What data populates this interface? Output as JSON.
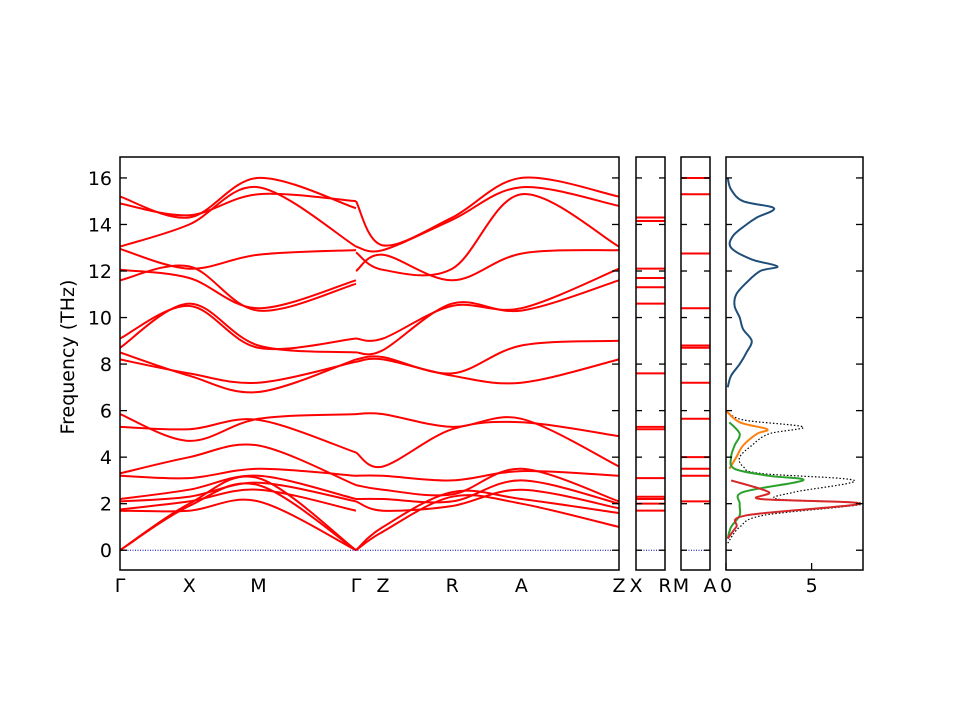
{
  "chart_data": {
    "type": "line",
    "ylabel": "Frequency (THz)",
    "ylim": [
      -0.85,
      16.9
    ],
    "yticks": [
      0,
      2,
      4,
      6,
      8,
      10,
      12,
      14,
      16
    ],
    "grid": false,
    "colors": {
      "bands": "#ff0000",
      "zero_line": "#0000aa",
      "total_dos": "#000000",
      "dos_series": [
        "#1f4e79",
        "#ff7f0e",
        "#2ca02c",
        "#d62728",
        "#a04040"
      ]
    },
    "band_panels": [
      {
        "id": "main",
        "segments": [
          {
            "start": "Γ",
            "end": "X"
          },
          {
            "start": "X",
            "end": "M"
          },
          {
            "start": "M",
            "end": "Γ"
          },
          {
            "start": "Γ|Z",
            "end": "Z",
            "note": ""
          }
        ],
        "tick_labels": [
          "Γ",
          "X",
          "M",
          "Γ",
          "Z",
          "R",
          "A",
          "Z"
        ],
        "tick_positions": [
          0.0,
          1.0,
          2.0,
          3.41,
          3.8,
          4.8,
          5.8,
          7.21
        ],
        "bands": [
          {
            "x": [
              0,
              1,
              2,
              3.41
            ],
            "y": [
              15.2,
              14.3,
              16.0,
              14.7
            ]
          },
          {
            "x": [
              0,
              1,
              2,
              3.41
            ],
            "y": [
              14.9,
              14.4,
              15.3,
              15.0
            ]
          },
          {
            "x": [
              0,
              1,
              2,
              3.41
            ],
            "y": [
              13.05,
              14.0,
              15.6,
              13.05
            ]
          },
          {
            "x": [
              0,
              1,
              2,
              3.41
            ],
            "y": [
              12.95,
              12.1,
              12.7,
              12.9
            ]
          },
          {
            "x": [
              0,
              1,
              2,
              3.41
            ],
            "y": [
              12.05,
              11.7,
              10.4,
              11.6
            ]
          },
          {
            "x": [
              0,
              1,
              2,
              3.41
            ],
            "y": [
              11.6,
              12.2,
              10.3,
              11.45
            ]
          },
          {
            "x": [
              0,
              1,
              2,
              3.41
            ],
            "y": [
              9.1,
              10.5,
              8.7,
              9.1
            ]
          },
          {
            "x": [
              0,
              1,
              2,
              3.41
            ],
            "y": [
              8.7,
              10.6,
              8.8,
              8.5
            ]
          },
          {
            "x": [
              0,
              1,
              2,
              3.41
            ],
            "y": [
              8.2,
              7.6,
              7.2,
              8.1
            ]
          },
          {
            "x": [
              0,
              1,
              2,
              3.41
            ],
            "y": [
              8.5,
              7.5,
              6.8,
              8.2
            ]
          },
          {
            "x": [
              0,
              1,
              2,
              3.41
            ],
            "y": [
              5.85,
              4.7,
              5.65,
              5.85
            ]
          },
          {
            "x": [
              0,
              1,
              2,
              3.41
            ],
            "y": [
              5.3,
              5.2,
              5.6,
              4.2
            ]
          },
          {
            "x": [
              0,
              1,
              2,
              3.41
            ],
            "y": [
              3.3,
              4.0,
              4.5,
              2.8
            ]
          },
          {
            "x": [
              0,
              1,
              2,
              3.41
            ],
            "y": [
              3.2,
              3.1,
              3.5,
              3.2
            ]
          },
          {
            "x": [
              0,
              1,
              2,
              3.41
            ],
            "y": [
              2.2,
              2.6,
              3.2,
              2.2
            ]
          },
          {
            "x": [
              0,
              1,
              2,
              3.41
            ],
            "y": [
              2.1,
              2.3,
              2.9,
              2.1
            ]
          },
          {
            "x": [
              0,
              1,
              2,
              3.41
            ],
            "y": [
              1.75,
              2.1,
              2.6,
              1.7
            ]
          },
          {
            "x": [
              0,
              1,
              2,
              3.41
            ],
            "y": [
              1.7,
              1.7,
              2.1,
              0.0
            ]
          },
          {
            "x": [
              0,
              1,
              2,
              3.41
            ],
            "y": [
              0.0,
              1.9,
              2.8,
              0.0
            ]
          },
          {
            "x": [
              0,
              1,
              2,
              3.41
            ],
            "y": [
              0.0,
              2.0,
              3.1,
              0.0
            ]
          },
          {
            "x": [
              3.41,
              3.8,
              4.8,
              5.8,
              7.21
            ],
            "y": [
              15.0,
              13.1,
              14.3,
              16.0,
              15.2
            ]
          },
          {
            "x": [
              3.41,
              3.8,
              4.8,
              5.8,
              7.21
            ],
            "y": [
              13.05,
              12.9,
              14.2,
              15.6,
              14.8
            ]
          },
          {
            "x": [
              3.41,
              3.8,
              4.8,
              5.8,
              7.21
            ],
            "y": [
              12.8,
              12.05,
              12.1,
              15.3,
              13.05
            ]
          },
          {
            "x": [
              3.41,
              3.8,
              4.8,
              5.8,
              7.21
            ],
            "y": [
              12.0,
              12.7,
              11.6,
              12.75,
              12.9
            ]
          },
          {
            "x": [
              3.41,
              3.8,
              4.8,
              5.8,
              7.21
            ],
            "y": [
              9.1,
              9.1,
              10.5,
              10.4,
              12.1
            ]
          },
          {
            "x": [
              3.41,
              3.8,
              4.8,
              5.8,
              7.21
            ],
            "y": [
              8.5,
              8.6,
              10.6,
              10.3,
              11.6
            ]
          },
          {
            "x": [
              3.41,
              3.8,
              4.8,
              5.8,
              7.21
            ],
            "y": [
              8.2,
              8.3,
              7.6,
              8.8,
              9.0
            ]
          },
          {
            "x": [
              3.41,
              3.8,
              4.8,
              5.8,
              7.21
            ],
            "y": [
              8.1,
              8.2,
              7.5,
              7.2,
              8.2
            ]
          },
          {
            "x": [
              3.41,
              3.8,
              4.8,
              5.8,
              7.21
            ],
            "y": [
              5.85,
              5.85,
              5.3,
              5.65,
              3.6
            ]
          },
          {
            "x": [
              3.41,
              3.8,
              4.8,
              5.8,
              7.21
            ],
            "y": [
              4.2,
              3.6,
              5.2,
              5.5,
              4.9
            ]
          },
          {
            "x": [
              3.41,
              3.8,
              4.8,
              5.8,
              7.21
            ],
            "y": [
              3.2,
              3.2,
              3.0,
              3.4,
              3.2
            ]
          },
          {
            "x": [
              3.41,
              3.8,
              4.8,
              5.8,
              7.21
            ],
            "y": [
              2.8,
              2.6,
              2.4,
              3.5,
              2.1
            ]
          },
          {
            "x": [
              3.41,
              3.8,
              4.8,
              5.8,
              7.21
            ],
            "y": [
              2.2,
              2.2,
              2.1,
              3.0,
              2.0
            ]
          },
          {
            "x": [
              3.41,
              3.8,
              4.8,
              5.8,
              7.21
            ],
            "y": [
              2.1,
              1.7,
              1.9,
              2.6,
              1.8
            ]
          },
          {
            "x": [
              3.41,
              3.8,
              4.8,
              5.8,
              7.21
            ],
            "y": [
              0.0,
              1.0,
              2.5,
              2.2,
              1.6
            ]
          },
          {
            "x": [
              3.41,
              3.8,
              4.8,
              5.8,
              7.21
            ],
            "y": [
              0.0,
              0.8,
              2.3,
              2.0,
              1.0
            ]
          }
        ]
      },
      {
        "id": "XR",
        "tick_labels": [
          "X",
          "R"
        ],
        "levels": [
          14.3,
          14.15,
          12.1,
          11.7,
          11.3,
          10.6,
          7.6,
          5.3,
          5.2,
          3.1,
          2.3,
          2.2,
          2.0,
          1.7
        ]
      },
      {
        "id": "MA",
        "tick_labels": [
          "M",
          "A"
        ],
        "levels": [
          16.0,
          15.3,
          12.75,
          10.4,
          8.8,
          8.7,
          7.2,
          5.65,
          4.0,
          3.5,
          3.2,
          2.1
        ]
      }
    ],
    "dos": {
      "xlim": [
        0,
        8
      ],
      "xticks": [
        0,
        5
      ],
      "series": [
        {
          "freq": [
            7.0,
            7.5,
            8.0,
            8.5,
            9.0,
            9.5,
            10.0,
            10.5,
            11.0,
            11.5,
            12.0,
            12.2,
            12.5,
            13.0,
            13.5,
            14.0,
            14.3,
            14.7,
            15.0,
            15.5,
            16.0
          ],
          "dos": [
            0.1,
            0.3,
            0.8,
            1.2,
            1.5,
            1.0,
            0.8,
            0.5,
            0.6,
            1.2,
            2.0,
            3.0,
            1.5,
            0.3,
            0.4,
            1.2,
            1.8,
            2.8,
            1.0,
            0.3,
            0.1
          ]
        },
        {
          "freq": [
            3.5,
            4.0,
            4.5,
            5.0,
            5.2,
            5.5,
            6.0
          ],
          "dos": [
            0.2,
            0.6,
            1.0,
            1.8,
            2.4,
            0.8,
            0.0
          ]
        },
        {
          "freq": [
            0.5,
            1.0,
            1.5,
            2.0,
            2.5,
            3.0,
            3.2,
            3.5,
            4.0,
            4.5,
            5.0,
            5.5
          ],
          "dos": [
            0.1,
            0.3,
            0.8,
            0.8,
            1.0,
            4.5,
            2.5,
            0.5,
            0.3,
            0.5,
            0.8,
            0.2
          ]
        },
        {
          "freq": [
            0.5,
            1.0,
            1.5,
            2.0,
            2.2,
            2.5,
            3.0
          ],
          "dos": [
            0.1,
            0.6,
            1.2,
            7.8,
            2.0,
            2.5,
            0.3
          ]
        }
      ],
      "total": {
        "freq": [
          0.3,
          1.0,
          1.5,
          2.0,
          2.2,
          2.5,
          3.0,
          3.3,
          3.6,
          4.0,
          4.5,
          5.0,
          5.3,
          5.6,
          6.0
        ],
        "dos": [
          0.1,
          0.8,
          2.2,
          8.0,
          3.0,
          4.0,
          7.5,
          2.0,
          1.0,
          0.8,
          1.5,
          2.5,
          4.5,
          1.0,
          0.0
        ]
      }
    }
  }
}
